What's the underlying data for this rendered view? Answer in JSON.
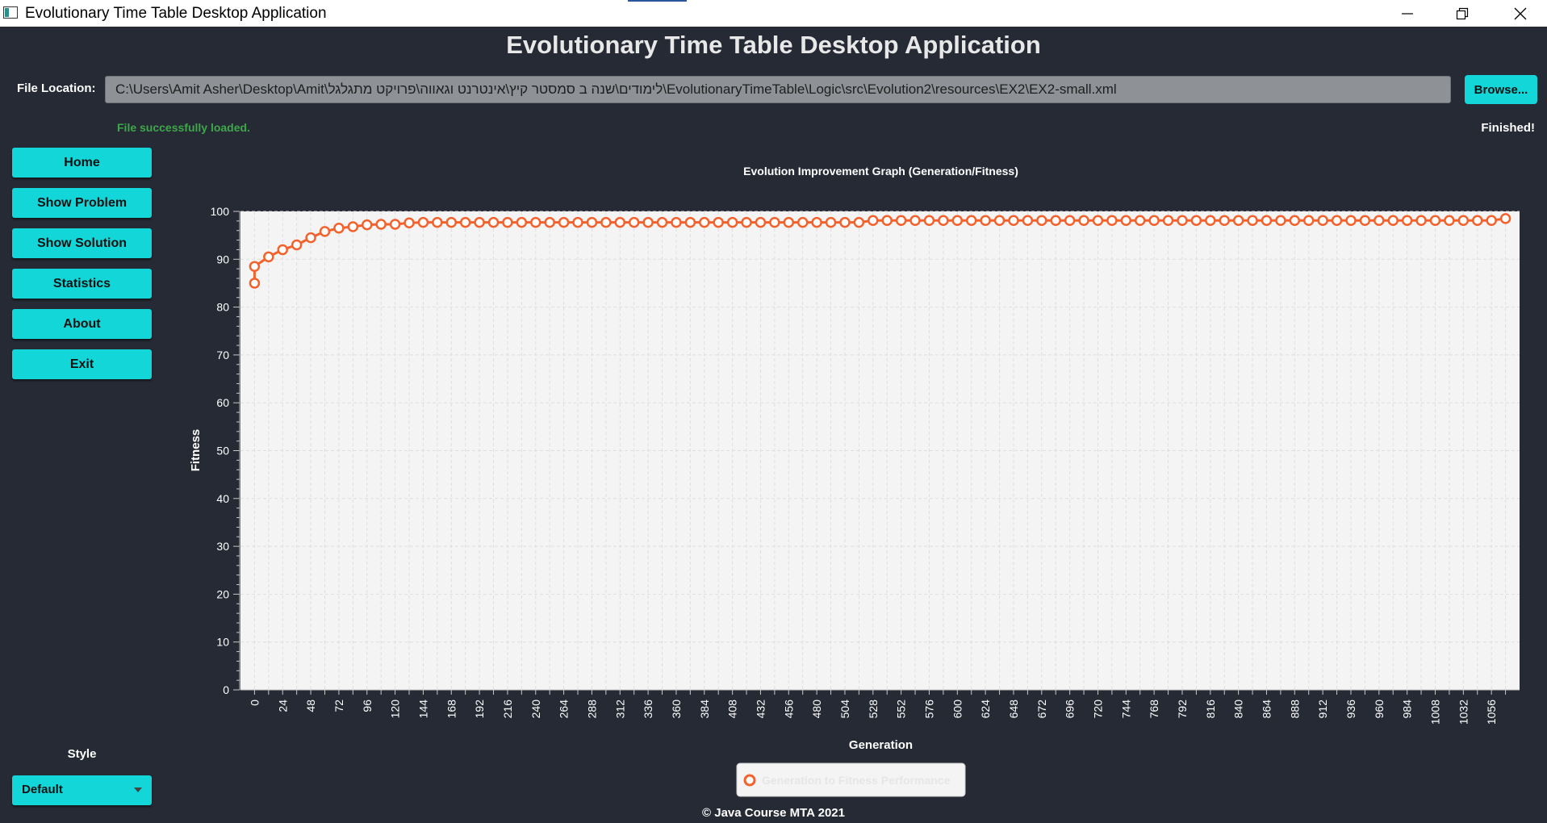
{
  "window": {
    "title": "Evolutionary Time Table Desktop Application"
  },
  "header": {
    "app_title": "Evolutionary Time Table Desktop Application",
    "file_location_label": "File Location:",
    "file_path": "C:\\Users\\Amit Asher\\Desktop\\Amit\\לימודים\\שנה ב סמסטר קיץ\\אינטרנט וגאווה\\פרויקט מתגלגל\\EvolutionaryTimeTable\\Logic\\src\\Evolution2\\resources\\EX2\\EX2-small.xml",
    "browse_label": "Browse...",
    "status_message": "File successfully loaded.",
    "finished_message": "Finished!"
  },
  "sidebar": {
    "items": [
      {
        "label": "Home"
      },
      {
        "label": "Show Problem"
      },
      {
        "label": "Show Solution"
      },
      {
        "label": "Statistics"
      },
      {
        "label": "About"
      },
      {
        "label": "Exit"
      }
    ],
    "style_label": "Style",
    "style_value": "Default"
  },
  "footer": {
    "text": "© Java Course MTA 2021"
  },
  "colors": {
    "background": "#252a35",
    "accent": "#12d6d8",
    "series": "#f3622d",
    "status_ok": "#3fa64a"
  },
  "chart_data": {
    "type": "line",
    "title": "Evolution Improvement Graph (Generation/Fitness)",
    "xlabel": "Generation",
    "ylabel": "Fitness",
    "ylim": [
      0,
      100
    ],
    "yticks": [
      0,
      10,
      20,
      30,
      40,
      50,
      60,
      70,
      80,
      90,
      100
    ],
    "xtick_step": 24,
    "x_categories_step": 12,
    "legend_position": "bottom",
    "grid": true,
    "series": [
      {
        "name": "Generation to Fitness Performance",
        "x": [
          0,
          0,
          12,
          24,
          36,
          48,
          60,
          72,
          84,
          96,
          108,
          120,
          132,
          144,
          156,
          168,
          180,
          192,
          204,
          216,
          228,
          240,
          252,
          264,
          276,
          288,
          300,
          312,
          324,
          336,
          348,
          360,
          372,
          384,
          396,
          408,
          420,
          432,
          444,
          456,
          468,
          480,
          492,
          504,
          516,
          528,
          540,
          552,
          564,
          576,
          588,
          600,
          612,
          624,
          636,
          648,
          660,
          672,
          684,
          696,
          708,
          720,
          732,
          744,
          756,
          768,
          780,
          792,
          804,
          816,
          828,
          840,
          852,
          864,
          876,
          888,
          900,
          912,
          924,
          936,
          948,
          960,
          972,
          984,
          996,
          1008,
          1020,
          1032,
          1044,
          1056,
          1068
        ],
        "values": [
          85,
          88.5,
          90.5,
          92,
          93,
          94.5,
          95.8,
          96.5,
          96.8,
          97.2,
          97.3,
          97.3,
          97.6,
          97.7,
          97.7,
          97.7,
          97.7,
          97.7,
          97.7,
          97.7,
          97.7,
          97.7,
          97.7,
          97.7,
          97.7,
          97.7,
          97.7,
          97.7,
          97.7,
          97.7,
          97.7,
          97.7,
          97.7,
          97.7,
          97.7,
          97.7,
          97.7,
          97.7,
          97.7,
          97.7,
          97.7,
          97.7,
          97.7,
          97.7,
          97.7,
          98.1,
          98.1,
          98.1,
          98.1,
          98.1,
          98.1,
          98.1,
          98.1,
          98.1,
          98.1,
          98.1,
          98.1,
          98.1,
          98.1,
          98.1,
          98.1,
          98.1,
          98.1,
          98.1,
          98.1,
          98.1,
          98.1,
          98.1,
          98.1,
          98.1,
          98.1,
          98.1,
          98.1,
          98.1,
          98.1,
          98.1,
          98.1,
          98.1,
          98.1,
          98.1,
          98.1,
          98.1,
          98.1,
          98.1,
          98.1,
          98.1,
          98.1,
          98.1,
          98.1,
          98.1,
          98.5
        ]
      }
    ]
  }
}
